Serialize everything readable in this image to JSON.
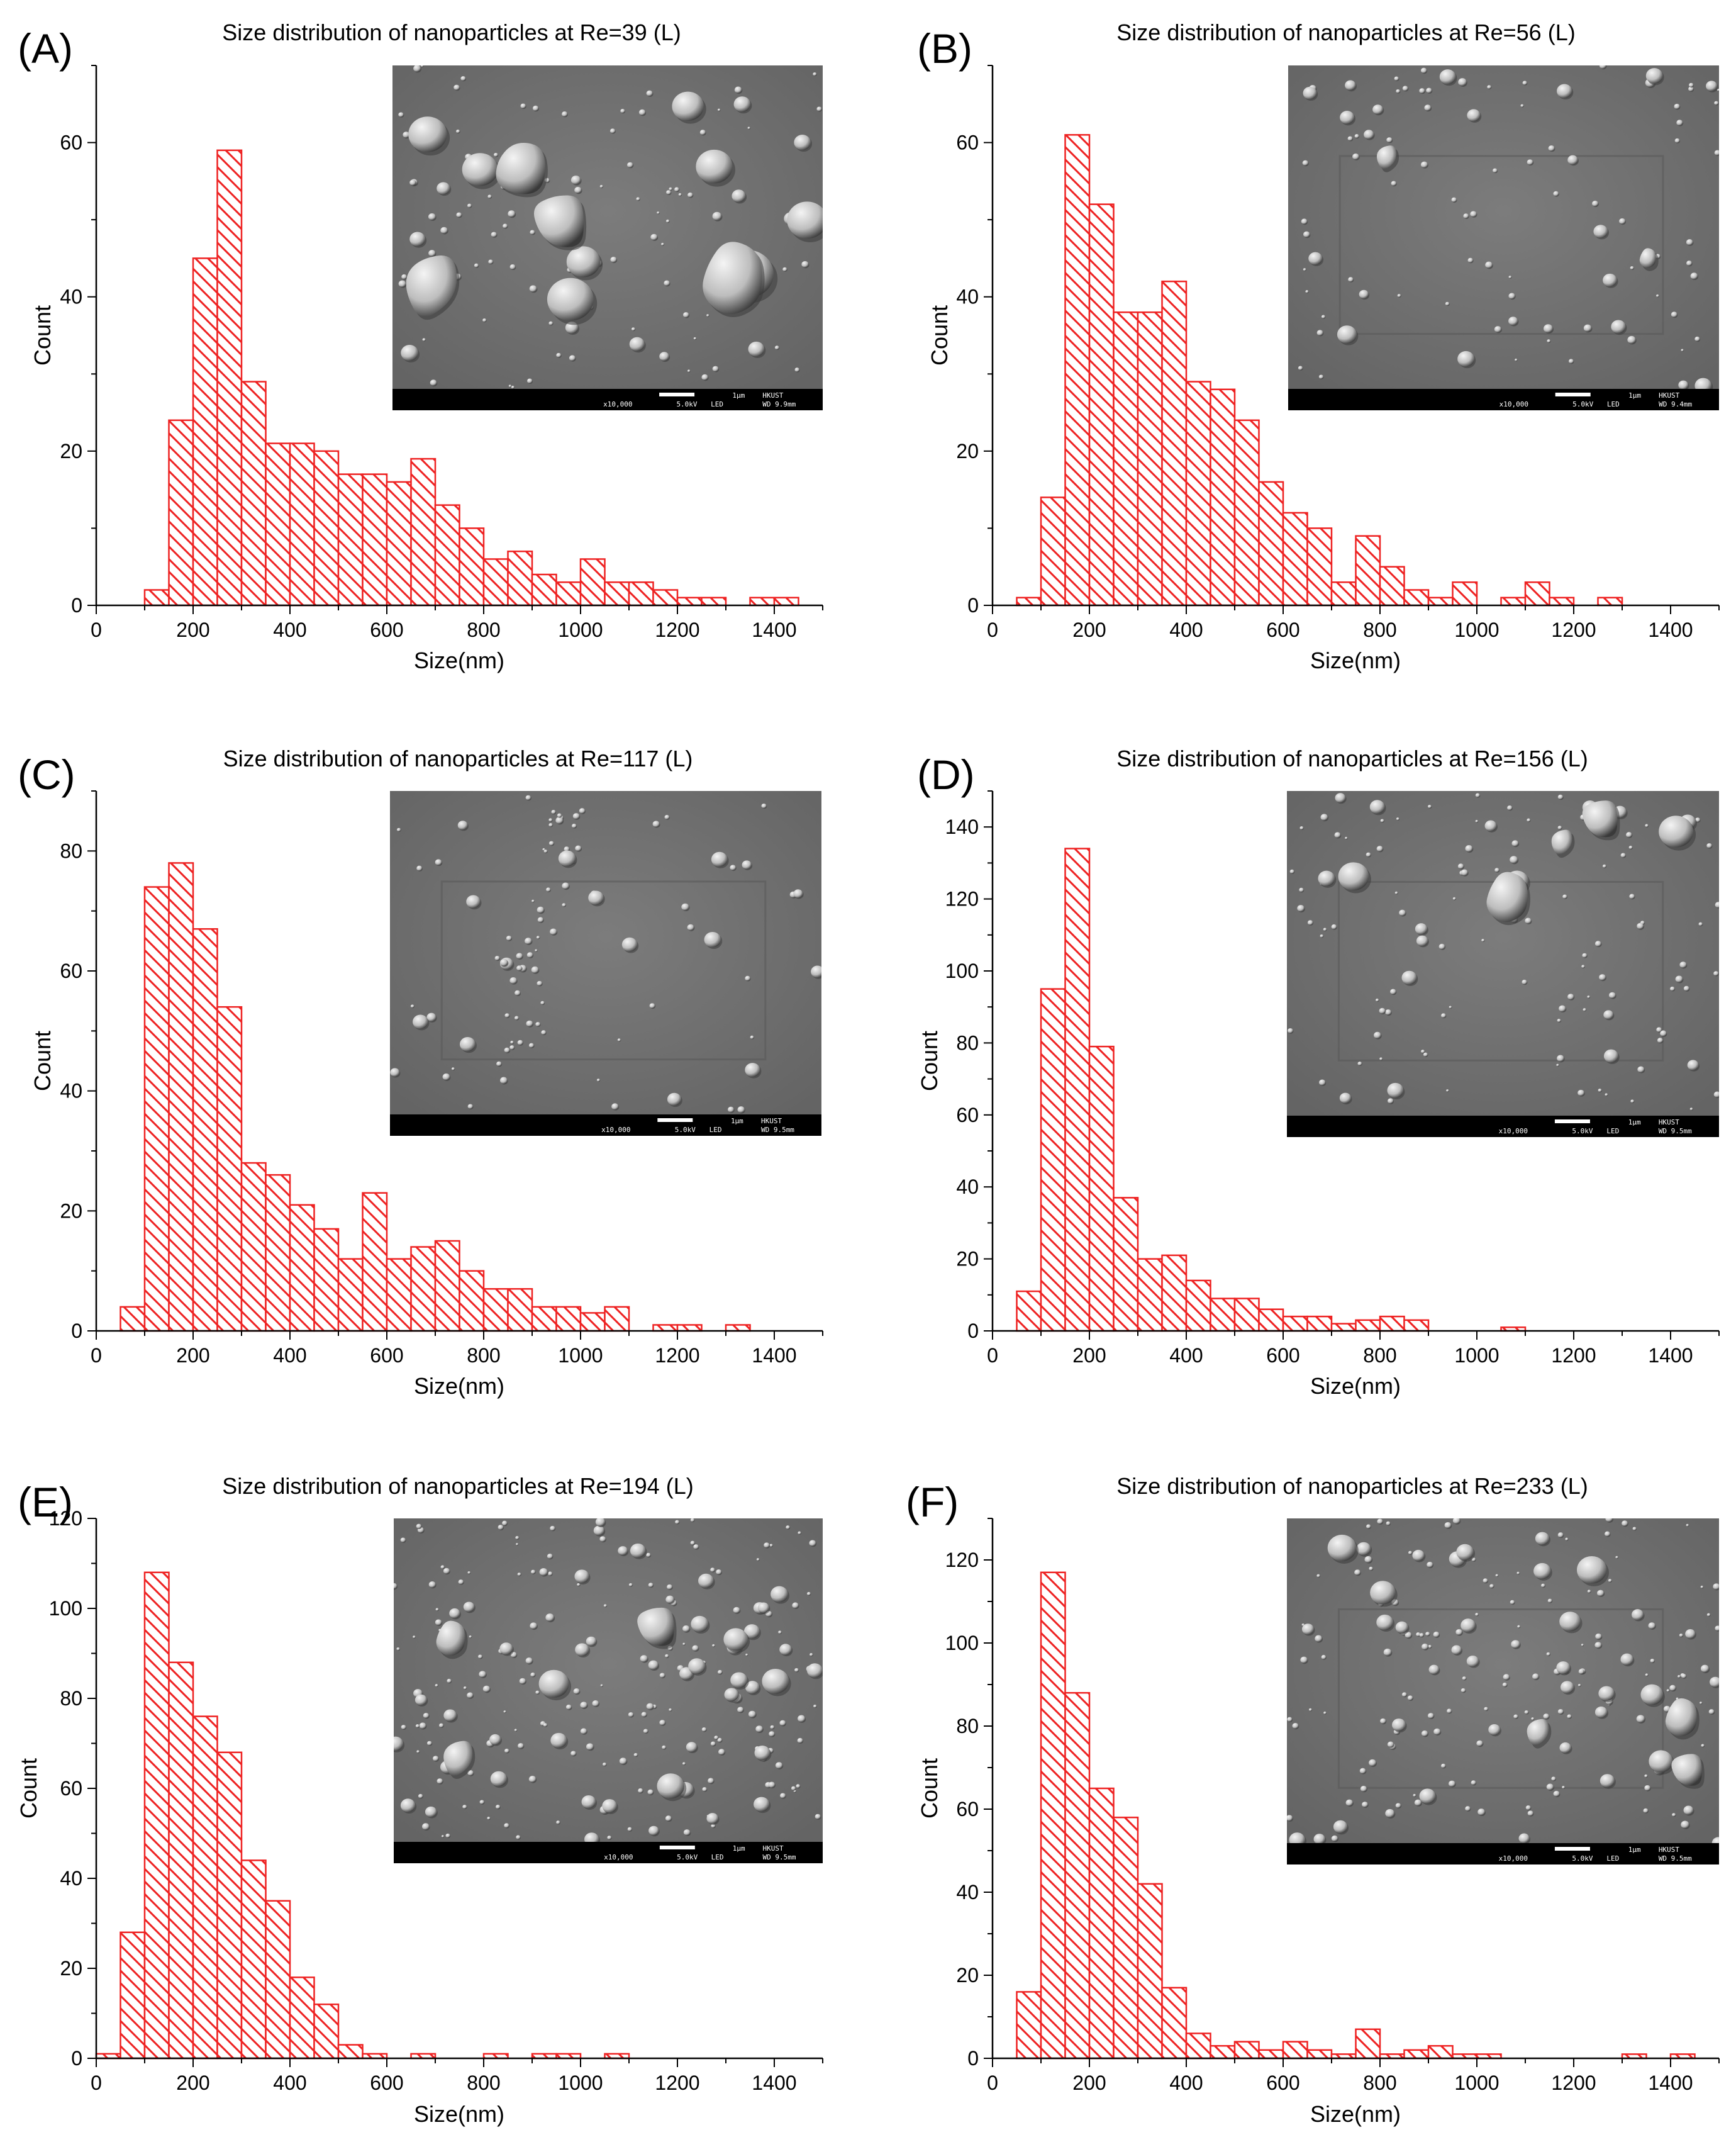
{
  "figure": {
    "background": "#ffffff",
    "bar_color": "#ee2222",
    "inset_text_color": "#ffffff"
  },
  "chart_data": [
    {
      "panel": "(A)",
      "type": "bar",
      "title": "Size distribution of nanoparticles at Re=39 (L)",
      "xlabel": "Size(nm)",
      "ylabel": "Count",
      "xlim": [
        0,
        1500
      ],
      "ylim": [
        0,
        70
      ],
      "xticks": [
        0,
        200,
        400,
        600,
        800,
        1000,
        1200,
        1400
      ],
      "yticks": [
        0,
        20,
        40,
        60
      ],
      "bin_width": 50,
      "bin_starts": [
        100,
        150,
        200,
        250,
        300,
        350,
        400,
        450,
        500,
        550,
        600,
        650,
        700,
        750,
        800,
        850,
        900,
        950,
        1000,
        1050,
        1100,
        1150,
        1200,
        1250,
        1300,
        1350,
        1400
      ],
      "values": [
        2,
        24,
        45,
        59,
        29,
        21,
        21,
        20,
        17,
        17,
        16,
        19,
        13,
        10,
        6,
        7,
        4,
        3,
        6,
        3,
        3,
        2,
        1,
        1,
        0,
        1,
        1
      ],
      "inset": {
        "magnification": "x10,000",
        "scale": "1µm",
        "voltage": "5.0kV",
        "mode": "LED",
        "wd": "WD 9.9mm",
        "institution": "HKUST"
      }
    },
    {
      "panel": "(B)",
      "type": "bar",
      "title": "Size distribution of nanoparticles at Re=56 (L)",
      "xlabel": "Size(nm)",
      "ylabel": "Count",
      "xlim": [
        0,
        1500
      ],
      "ylim": [
        0,
        70
      ],
      "xticks": [
        0,
        200,
        400,
        600,
        800,
        1000,
        1200,
        1400
      ],
      "yticks": [
        0,
        20,
        40,
        60
      ],
      "bin_width": 50,
      "bin_starts": [
        50,
        100,
        150,
        200,
        250,
        300,
        350,
        400,
        450,
        500,
        550,
        600,
        650,
        700,
        750,
        800,
        850,
        900,
        950,
        1000,
        1050,
        1100,
        1150,
        1200,
        1250
      ],
      "values": [
        1,
        14,
        61,
        52,
        38,
        38,
        42,
        29,
        28,
        24,
        16,
        12,
        10,
        3,
        9,
        5,
        2,
        1,
        3,
        0,
        1,
        3,
        1,
        0,
        1
      ],
      "inset": {
        "magnification": "x10,000",
        "scale": "1µm",
        "voltage": "5.0kV",
        "mode": "LED",
        "wd": "WD 9.4mm",
        "institution": "HKUST"
      }
    },
    {
      "panel": "(C)",
      "type": "bar",
      "title": "Size distribution of nanoparticles at Re=117 (L)",
      "xlabel": "Size(nm)",
      "ylabel": "Count",
      "xlim": [
        0,
        1500
      ],
      "ylim": [
        0,
        90
      ],
      "xticks": [
        0,
        200,
        400,
        600,
        800,
        1000,
        1200,
        1400
      ],
      "yticks": [
        0,
        20,
        40,
        60,
        80
      ],
      "bin_width": 50,
      "bin_starts": [
        50,
        100,
        150,
        200,
        250,
        300,
        350,
        400,
        450,
        500,
        550,
        600,
        650,
        700,
        750,
        800,
        850,
        900,
        950,
        1000,
        1050,
        1100,
        1150,
        1200,
        1250,
        1300
      ],
      "values": [
        4,
        74,
        78,
        67,
        54,
        28,
        26,
        21,
        17,
        12,
        23,
        12,
        14,
        15,
        10,
        7,
        7,
        4,
        4,
        3,
        4,
        0,
        1,
        1,
        0,
        1
      ],
      "inset": {
        "magnification": "x10,000",
        "scale": "1µm",
        "voltage": "5.0kV",
        "mode": "LED",
        "wd": "WD 9.5mm",
        "institution": "HKUST"
      }
    },
    {
      "panel": "(D)",
      "type": "bar",
      "title": "Size distribution of nanoparticles at Re=156 (L)",
      "xlabel": "Size(nm)",
      "ylabel": "Count",
      "xlim": [
        0,
        1500
      ],
      "ylim": [
        0,
        150
      ],
      "xticks": [
        0,
        200,
        400,
        600,
        800,
        1000,
        1200,
        1400
      ],
      "yticks": [
        0,
        20,
        40,
        60,
        80,
        100,
        120,
        140
      ],
      "bin_width": 50,
      "bin_starts": [
        50,
        100,
        150,
        200,
        250,
        300,
        350,
        400,
        450,
        500,
        550,
        600,
        650,
        700,
        750,
        800,
        850,
        900,
        950,
        1000,
        1050
      ],
      "values": [
        11,
        95,
        134,
        79,
        37,
        20,
        21,
        14,
        9,
        9,
        6,
        4,
        4,
        2,
        3,
        4,
        3,
        0,
        0,
        0,
        1
      ],
      "inset": {
        "magnification": "x10,000",
        "scale": "1µm",
        "voltage": "5.0kV",
        "mode": "LED",
        "wd": "WD 9.5mm",
        "institution": "HKUST"
      }
    },
    {
      "panel": "(E)",
      "type": "bar",
      "title": "Size distribution of nanoparticles at Re=194 (L)",
      "xlabel": "Size(nm)",
      "ylabel": "Count",
      "xlim": [
        0,
        1500
      ],
      "ylim": [
        0,
        120
      ],
      "xticks": [
        0,
        200,
        400,
        600,
        800,
        1000,
        1200,
        1400
      ],
      "yticks": [
        0,
        20,
        40,
        60,
        80,
        100,
        120
      ],
      "bin_width": 50,
      "bin_starts": [
        0,
        50,
        100,
        150,
        200,
        250,
        300,
        350,
        400,
        450,
        500,
        550,
        600,
        650,
        700,
        750,
        800,
        850,
        900,
        950,
        1000,
        1050
      ],
      "values": [
        1,
        28,
        108,
        88,
        76,
        68,
        44,
        35,
        18,
        12,
        3,
        1,
        0,
        1,
        0,
        0,
        1,
        0,
        1,
        1,
        0,
        1
      ],
      "inset": {
        "magnification": "x10,000",
        "scale": "1µm",
        "voltage": "5.0kV",
        "mode": "LED",
        "wd": "WD 9.5mm",
        "institution": "HKUST"
      }
    },
    {
      "panel": "(F)",
      "type": "bar",
      "title": "Size distribution of nanoparticles at Re=233 (L)",
      "xlabel": "Size(nm)",
      "ylabel": "Count",
      "xlim": [
        0,
        1500
      ],
      "ylim": [
        0,
        130
      ],
      "xticks": [
        0,
        200,
        400,
        600,
        800,
        1000,
        1200,
        1400
      ],
      "yticks": [
        0,
        20,
        40,
        60,
        80,
        100,
        120
      ],
      "bin_width": 50,
      "bin_starts": [
        50,
        100,
        150,
        200,
        250,
        300,
        350,
        400,
        450,
        500,
        550,
        600,
        650,
        700,
        750,
        800,
        850,
        900,
        950,
        1000,
        1050,
        1100,
        1150,
        1200,
        1250,
        1300,
        1350,
        1400
      ],
      "values": [
        16,
        117,
        88,
        65,
        58,
        42,
        17,
        6,
        3,
        4,
        2,
        4,
        2,
        1,
        7,
        1,
        2,
        3,
        1,
        1,
        0,
        0,
        0,
        0,
        0,
        1,
        0,
        1
      ],
      "inset": {
        "magnification": "x10,000",
        "scale": "1µm",
        "voltage": "5.0kV",
        "mode": "LED",
        "wd": "WD 9.5mm",
        "institution": "HKUST"
      }
    }
  ]
}
